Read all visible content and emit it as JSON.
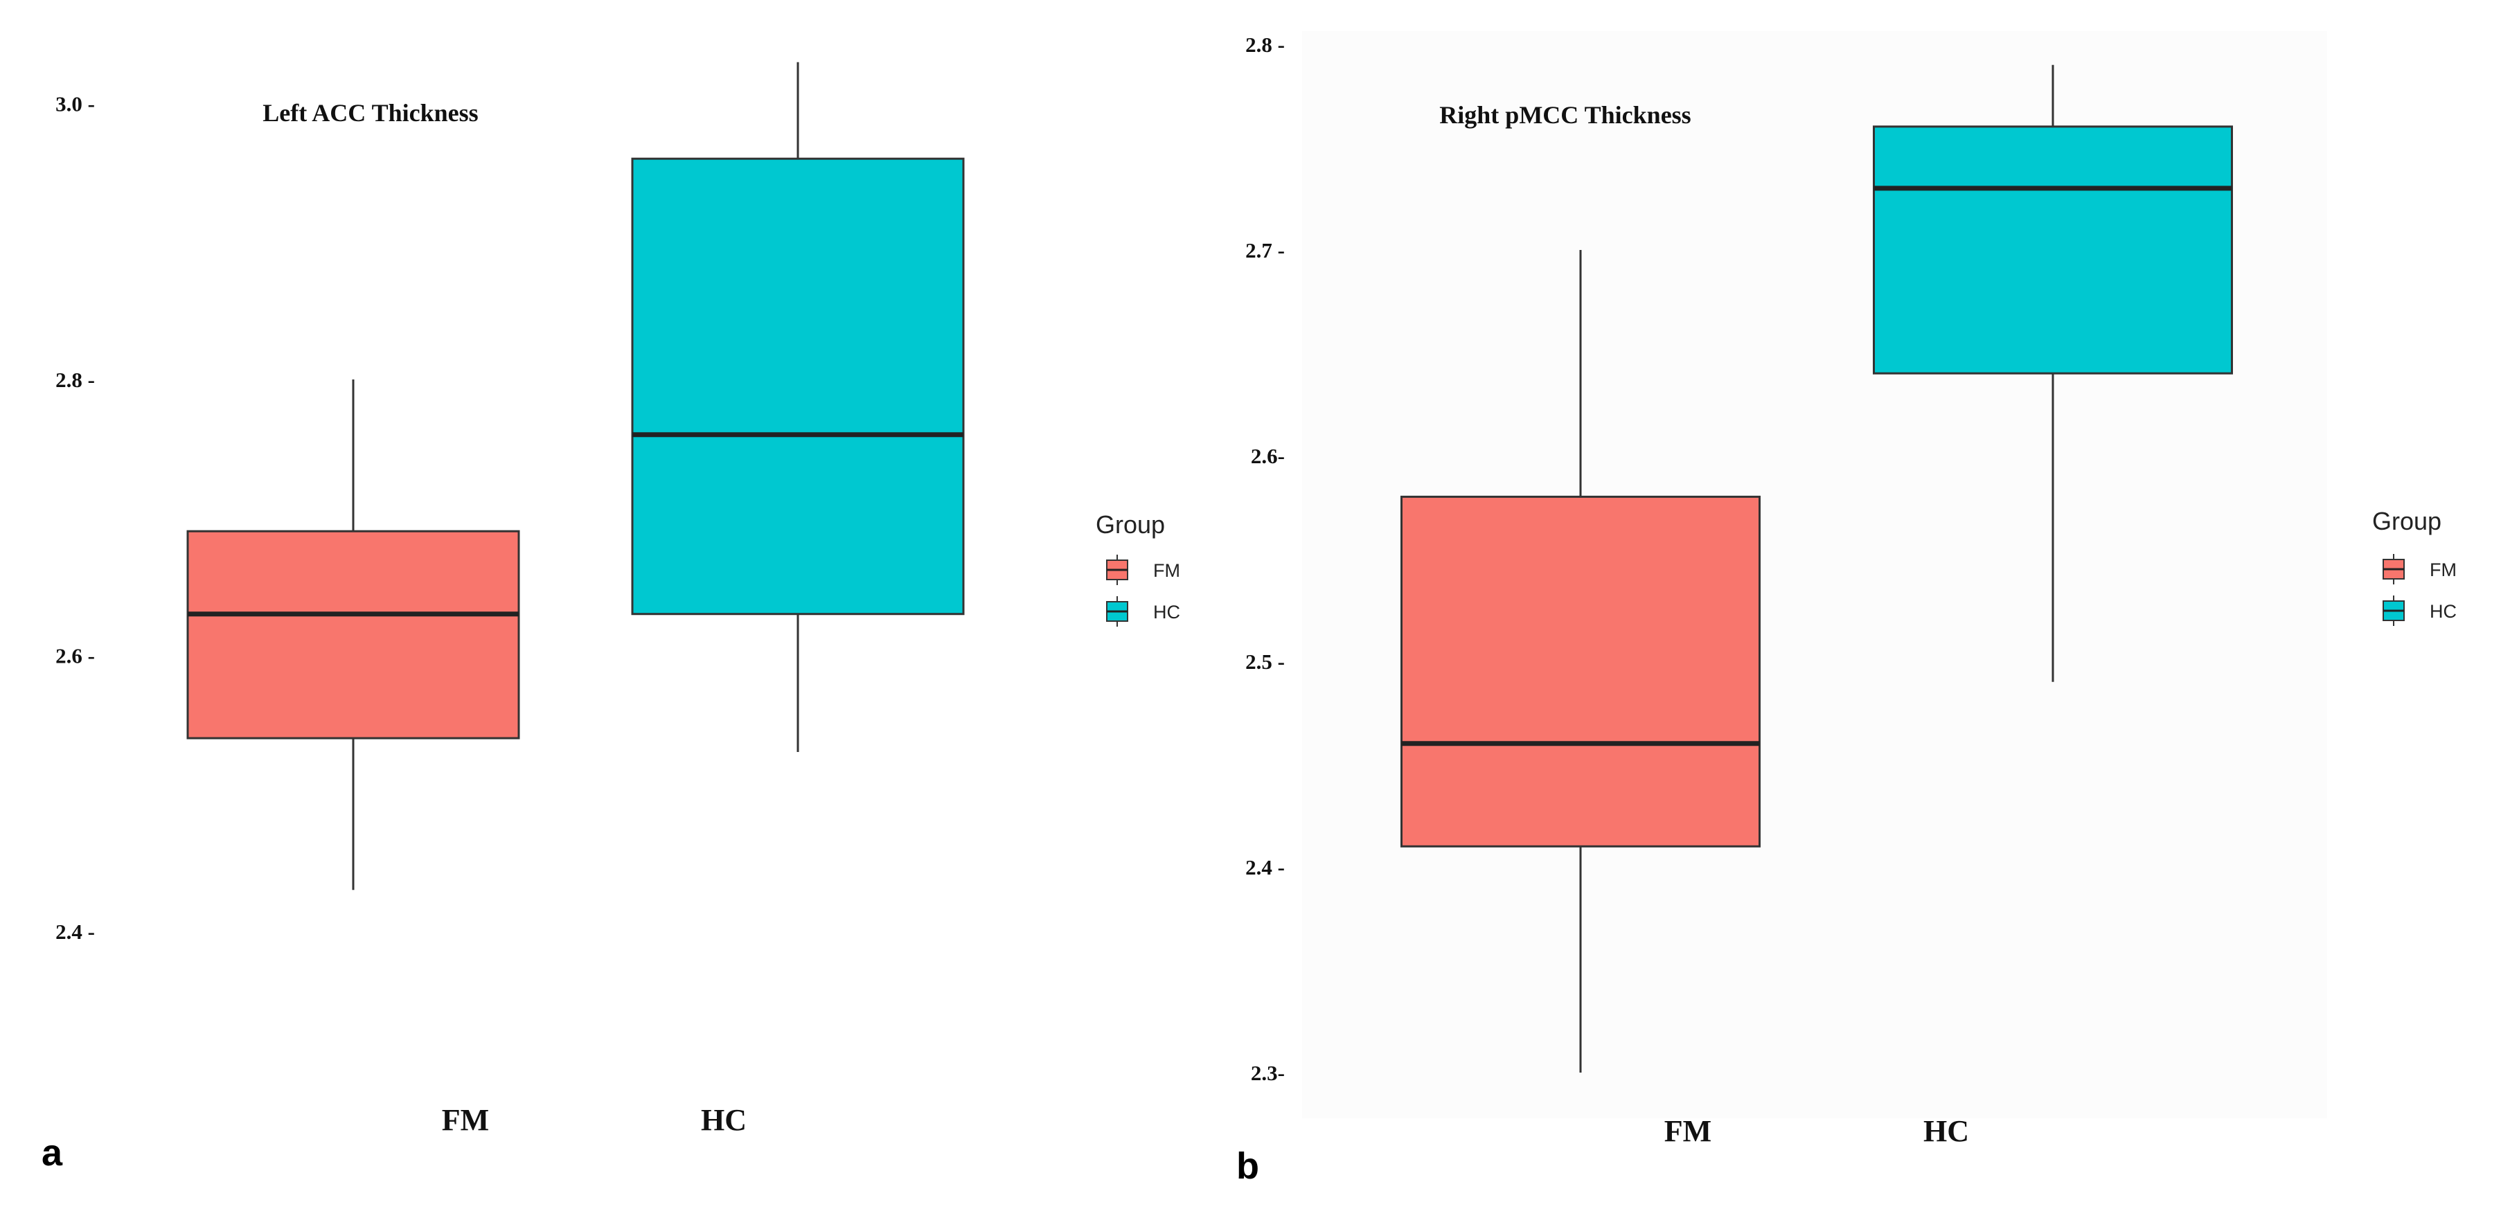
{
  "colors": {
    "FM": "#F8766D",
    "HC": "#00C8D0",
    "box_outline": "#333333",
    "median_line": "#222222",
    "whisker": "#333333",
    "panel_b_background": "#fcfcfc"
  },
  "panels": [
    {
      "panel_letter": "a",
      "legend": {
        "title": "Group",
        "items": [
          "FM",
          "HC"
        ]
      },
      "chart_data": {
        "type": "box",
        "title": "Left ACC Thickness",
        "xlabel": "",
        "ylabel": "",
        "categories": [
          "FM",
          "HC"
        ],
        "tick_values": [
          2.4,
          2.6,
          2.8,
          3.0
        ],
        "tick_labels": [
          "2.4 -",
          "2.6 -",
          "2.8 -",
          "3.0 -"
        ],
        "ylim": [
          2.36,
          3.04
        ],
        "grid": false,
        "legend_position": "right",
        "boxes": [
          {
            "group": "FM",
            "min": 2.43,
            "q1": 2.54,
            "median": 2.63,
            "q3": 2.69,
            "max": 2.8
          },
          {
            "group": "HC",
            "min": 2.53,
            "q1": 2.63,
            "median": 2.76,
            "q3": 2.96,
            "max": 3.03
          }
        ]
      }
    },
    {
      "panel_letter": "b",
      "legend": {
        "title": "Group",
        "items": [
          "FM",
          "HC"
        ]
      },
      "chart_data": {
        "type": "box",
        "title": "Right pMCC Thickness",
        "xlabel": "",
        "ylabel": "",
        "categories": [
          "FM",
          "HC"
        ],
        "tick_values": [
          2.3,
          2.4,
          2.5,
          2.6,
          2.7,
          2.8
        ],
        "tick_labels": [
          "2.3-",
          "2.4 -",
          "2.5 -",
          "2.6-",
          "2.7 -",
          "2.8 -"
        ],
        "ylim": [
          2.29,
          2.81
        ],
        "grid": false,
        "legend_position": "right",
        "boxes": [
          {
            "group": "FM",
            "min": 2.3,
            "q1": 2.41,
            "median": 2.46,
            "q3": 2.58,
            "max": 2.7
          },
          {
            "group": "HC",
            "min": 2.49,
            "q1": 2.64,
            "median": 2.73,
            "q3": 2.76,
            "max": 2.79
          }
        ]
      }
    }
  ]
}
